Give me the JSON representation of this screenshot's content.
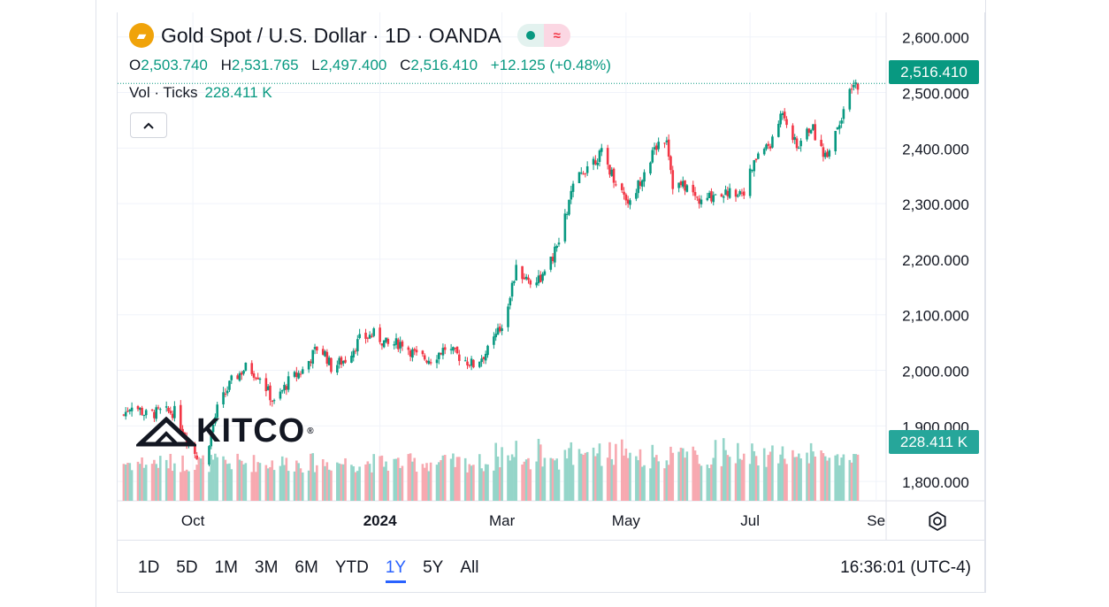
{
  "header": {
    "title": "Gold Spot / U.S. Dollar · 1D · OANDA",
    "ohlc": {
      "o_label": "O",
      "o_value": "2,503.740",
      "h_label": "H",
      "h_value": "2,531.765",
      "l_label": "L",
      "l_value": "2,497.400",
      "c_label": "C",
      "c_value": "2,516.410",
      "change": "+12.125 (+0.48%)"
    },
    "volume": {
      "label": "Vol · Ticks",
      "value": "228.411 K"
    }
  },
  "watermark": {
    "text": "KITCO",
    "mark": "®"
  },
  "price_tags": {
    "last_price": "2,516.410",
    "last_volume": "228.411 K"
  },
  "range_buttons": [
    "1D",
    "5D",
    "1M",
    "3M",
    "6M",
    "YTD",
    "1Y",
    "5Y",
    "All"
  ],
  "active_range": "1Y",
  "clock": "16:36:01 (UTC-4)",
  "colors": {
    "up": "#089981",
    "down": "#f23645",
    "up_volume": "#95d5c9",
    "down_volume": "#f7a9b0",
    "grid": "#f0f3fa",
    "active": "#2962ff"
  },
  "chart_data": {
    "type": "candlestick",
    "title": "Gold Spot / U.S. Dollar · 1D · OANDA",
    "y_axis": {
      "ticks": [
        "2,600.000",
        "2,500.000",
        "2,400.000",
        "2,300.000",
        "2,200.000",
        "2,100.000",
        "2,000.000",
        "1,900.000",
        "1,800.000"
      ],
      "tick_values": [
        2600,
        2500,
        2400,
        2300,
        2200,
        2100,
        2000,
        1900,
        1800
      ],
      "ylim": [
        1770,
        2625
      ]
    },
    "x_axis": {
      "ticks": [
        "Oct",
        "2024",
        "Mar",
        "May",
        "Jul",
        "Se"
      ]
    },
    "grid": true,
    "series": [
      {
        "name": "Gold Spot / U.S. Dollar",
        "type": "ohlc_daily_close_path",
        "close_points": [
          [
            "2023-08-28",
            1920
          ],
          [
            "2023-09-01",
            1940
          ],
          [
            "2023-09-08",
            1920
          ],
          [
            "2023-09-15",
            1925
          ],
          [
            "2023-09-22",
            1925
          ],
          [
            "2023-09-29",
            1870
          ],
          [
            "2023-10-06",
            1830
          ],
          [
            "2023-10-13",
            1930
          ],
          [
            "2023-10-20",
            1980
          ],
          [
            "2023-10-27",
            2005
          ],
          [
            "2023-11-03",
            1990
          ],
          [
            "2023-11-10",
            1940
          ],
          [
            "2023-11-17",
            1980
          ],
          [
            "2023-11-24",
            2000
          ],
          [
            "2023-12-01",
            2040
          ],
          [
            "2023-12-05",
            2030
          ],
          [
            "2023-12-08",
            2005
          ],
          [
            "2023-12-15",
            2020
          ],
          [
            "2023-12-22",
            2055
          ],
          [
            "2023-12-29",
            2065
          ],
          [
            "2024-01-05",
            2045
          ],
          [
            "2024-01-12",
            2050
          ],
          [
            "2024-01-19",
            2025
          ],
          [
            "2024-01-26",
            2020
          ],
          [
            "2024-02-02",
            2040
          ],
          [
            "2024-02-09",
            2025
          ],
          [
            "2024-02-16",
            2010
          ],
          [
            "2024-02-23",
            2035
          ],
          [
            "2024-03-01",
            2080
          ],
          [
            "2024-03-08",
            2180
          ],
          [
            "2024-03-15",
            2160
          ],
          [
            "2024-03-22",
            2170
          ],
          [
            "2024-03-29",
            2230
          ],
          [
            "2024-04-05",
            2330
          ],
          [
            "2024-04-12",
            2370
          ],
          [
            "2024-04-19",
            2390
          ],
          [
            "2024-04-26",
            2340
          ],
          [
            "2024-05-03",
            2300
          ],
          [
            "2024-05-10",
            2360
          ],
          [
            "2024-05-17",
            2410
          ],
          [
            "2024-05-21",
            2420
          ],
          [
            "2024-05-24",
            2335
          ],
          [
            "2024-05-31",
            2330
          ],
          [
            "2024-06-07",
            2300
          ],
          [
            "2024-06-14",
            2320
          ],
          [
            "2024-06-21",
            2320
          ],
          [
            "2024-06-28",
            2325
          ],
          [
            "2024-07-05",
            2390
          ],
          [
            "2024-07-12",
            2410
          ],
          [
            "2024-07-17",
            2470
          ],
          [
            "2024-07-24",
            2400
          ],
          [
            "2024-07-31",
            2440
          ],
          [
            "2024-08-07",
            2385
          ],
          [
            "2024-08-14",
            2450
          ],
          [
            "2024-08-20",
            2505
          ],
          [
            "2024-08-23",
            2516
          ]
        ]
      },
      {
        "name": "Vol · Ticks",
        "type": "volume_bars",
        "last_value": "228.411 K"
      }
    ]
  }
}
